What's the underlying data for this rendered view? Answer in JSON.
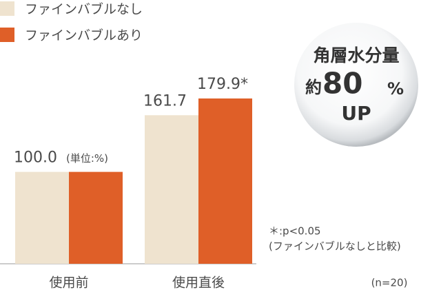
{
  "chart_data": {
    "type": "bar",
    "categories": [
      "使用前",
      "使用直後"
    ],
    "series": [
      {
        "name": "ファインバブルなし",
        "color": "#efe3cf",
        "values": [
          100.0,
          161.7
        ],
        "value_labels": [
          "100.0",
          "161.7"
        ]
      },
      {
        "name": "ファインバブルあり",
        "color": "#df5f28",
        "values": [
          100.0,
          179.9
        ],
        "value_labels": [
          null,
          "179.9*"
        ]
      }
    ],
    "unit_label": "(単位:%)",
    "badge": {
      "line1": "角層水分量",
      "prefix": "約",
      "number": "80",
      "unit": "%",
      "line2": "UP"
    },
    "notes": [
      "＊:p<0.05",
      "(ファインバブルなしと比較)"
    ],
    "sample_size": "(n=20)"
  }
}
